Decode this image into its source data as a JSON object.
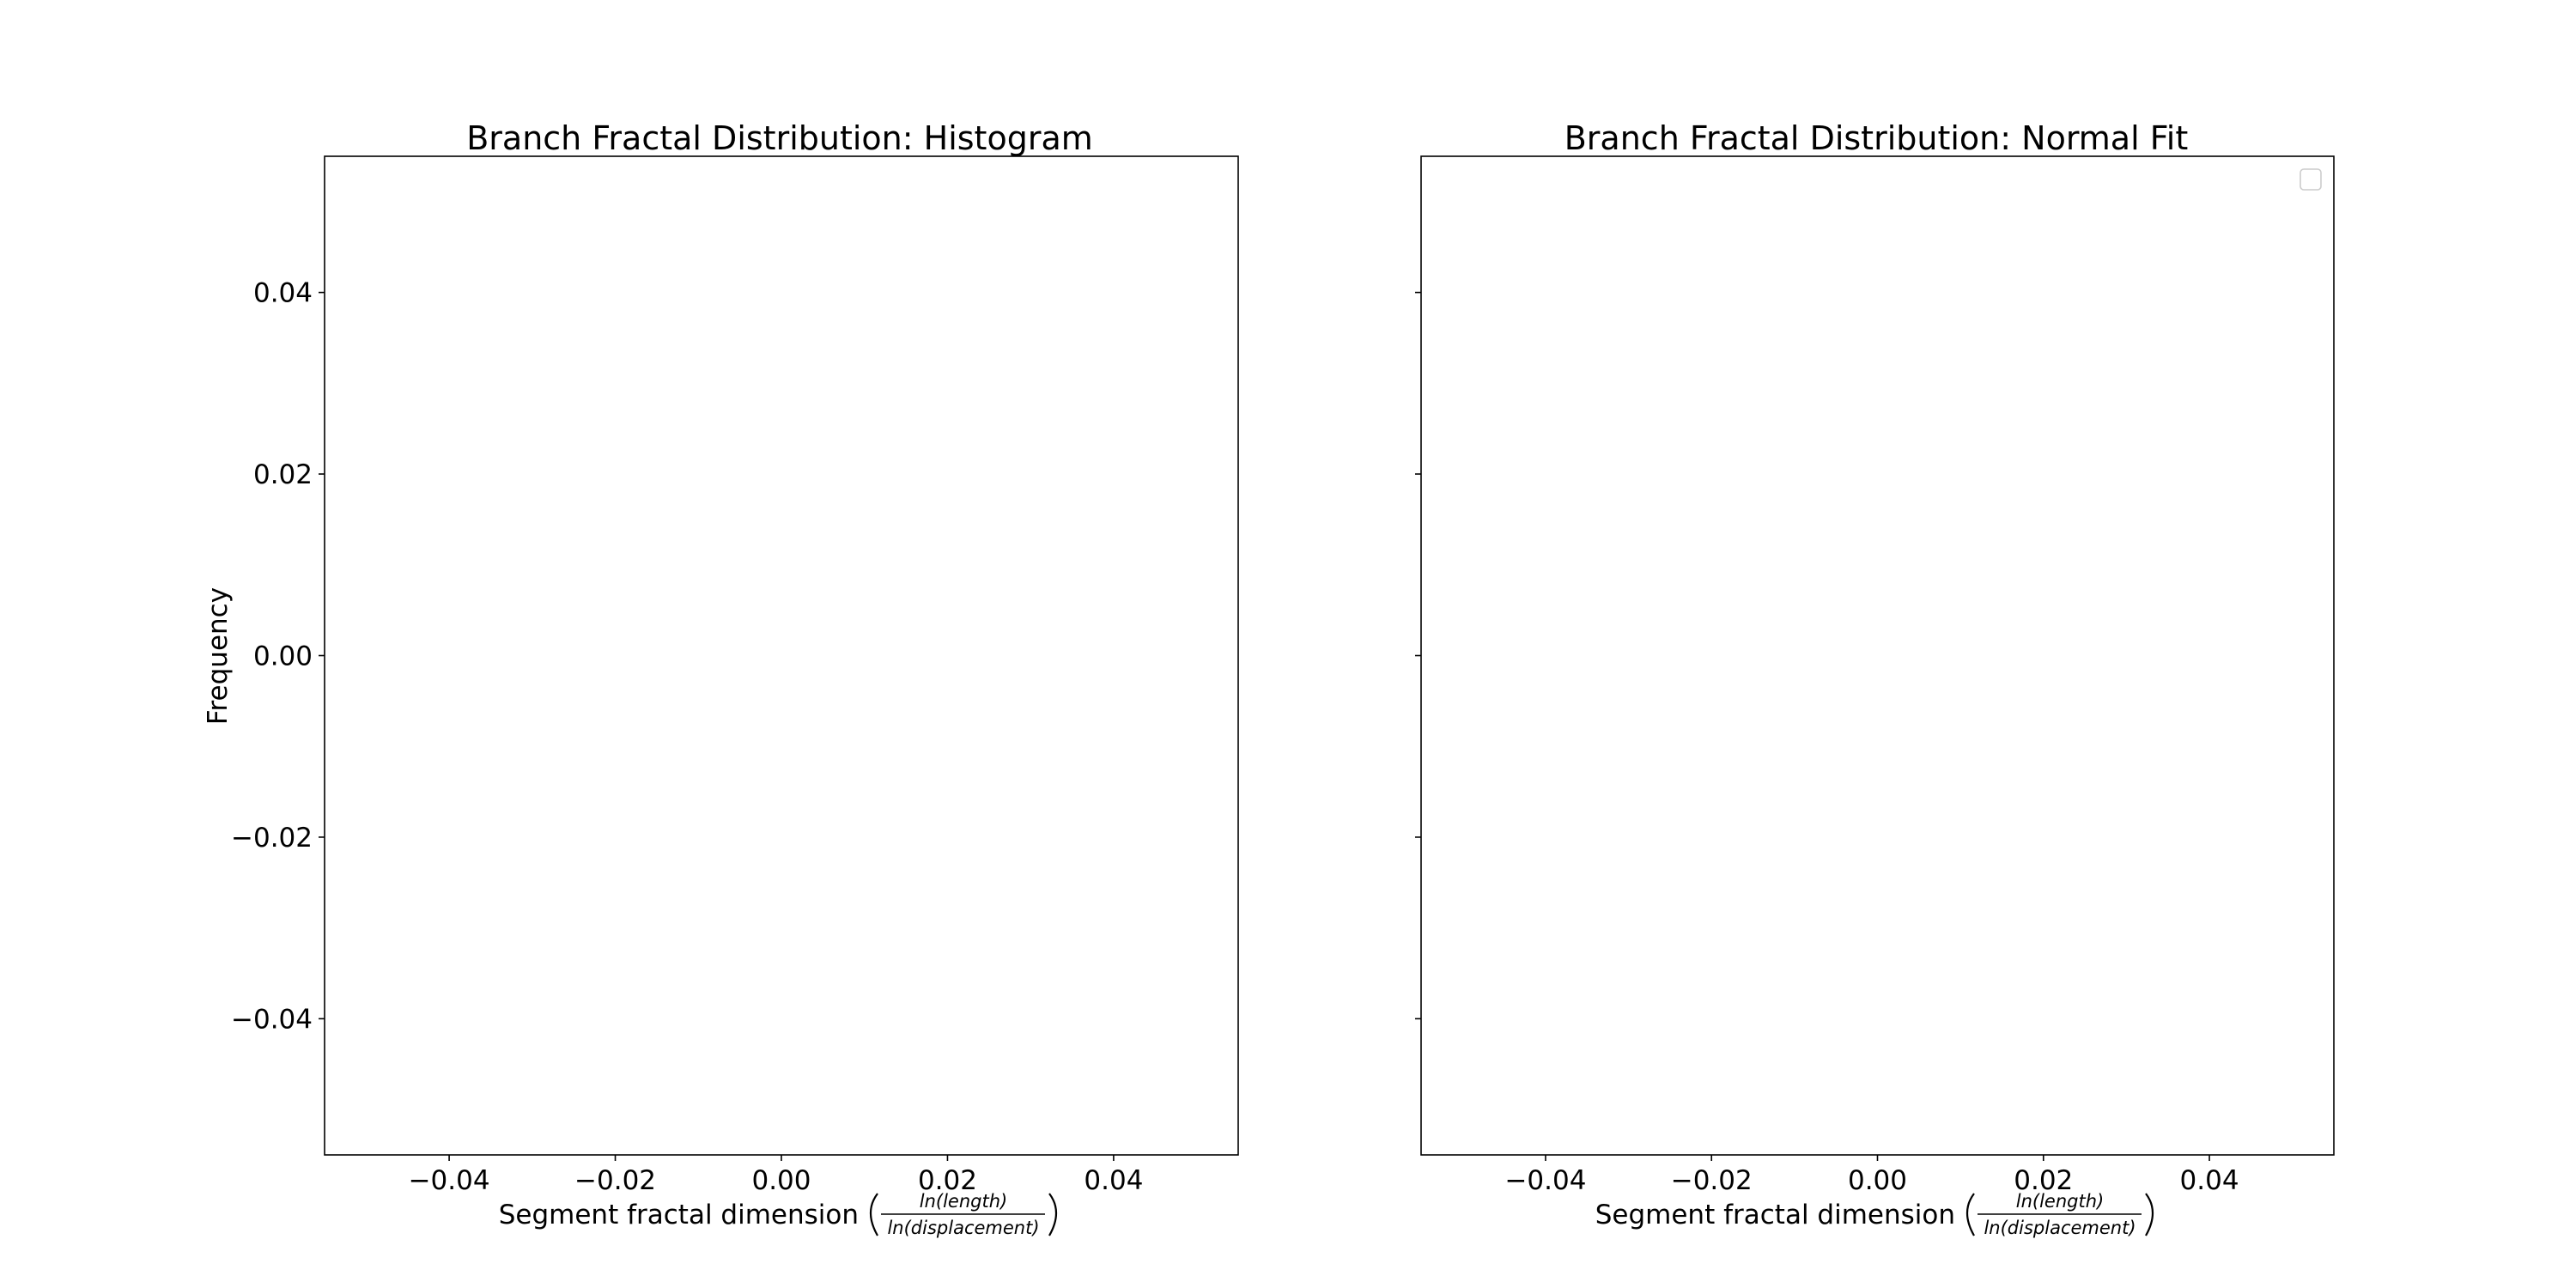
{
  "chart_data": [
    {
      "type": "bar",
      "title": "Branch Fractal Distribution: Histogram",
      "xlabel": {
        "text": "Segment fractal dimension",
        "numerator": "ln(length)",
        "denominator": "ln(displacement)"
      },
      "ylabel": "Frequency",
      "xlim": [
        -0.055,
        0.055
      ],
      "ylim": [
        -0.055,
        0.055
      ],
      "xticks": [
        -0.04,
        -0.02,
        0.0,
        0.02,
        0.04
      ],
      "xtick_labels": [
        "−0.04",
        "−0.02",
        "0.00",
        "0.02",
        "0.04"
      ],
      "yticks": [
        0.04,
        0.02,
        0.0,
        -0.02,
        -0.04
      ],
      "ytick_labels": [
        "0.04",
        "0.02",
        "0.00",
        "−0.02",
        "−0.04"
      ],
      "series": [],
      "grid": false,
      "legend": false
    },
    {
      "type": "line",
      "title": "Branch Fractal Distribution: Normal Fit",
      "xlabel": {
        "text": "Segment fractal dimension",
        "numerator": "ln(length)",
        "denominator": "ln(displacement)"
      },
      "ylabel": "",
      "xlim": [
        -0.055,
        0.055
      ],
      "ylim": [
        -0.055,
        0.055
      ],
      "xticks": [
        -0.04,
        -0.02,
        0.0,
        0.02,
        0.04
      ],
      "xtick_labels": [
        "−0.04",
        "−0.02",
        "0.00",
        "0.02",
        "0.04"
      ],
      "yticks": [
        0.04,
        0.02,
        0.0,
        -0.02,
        -0.04
      ],
      "ytick_labels": [],
      "series": [],
      "grid": false,
      "legend": true,
      "legend_placement": "top-right"
    }
  ]
}
